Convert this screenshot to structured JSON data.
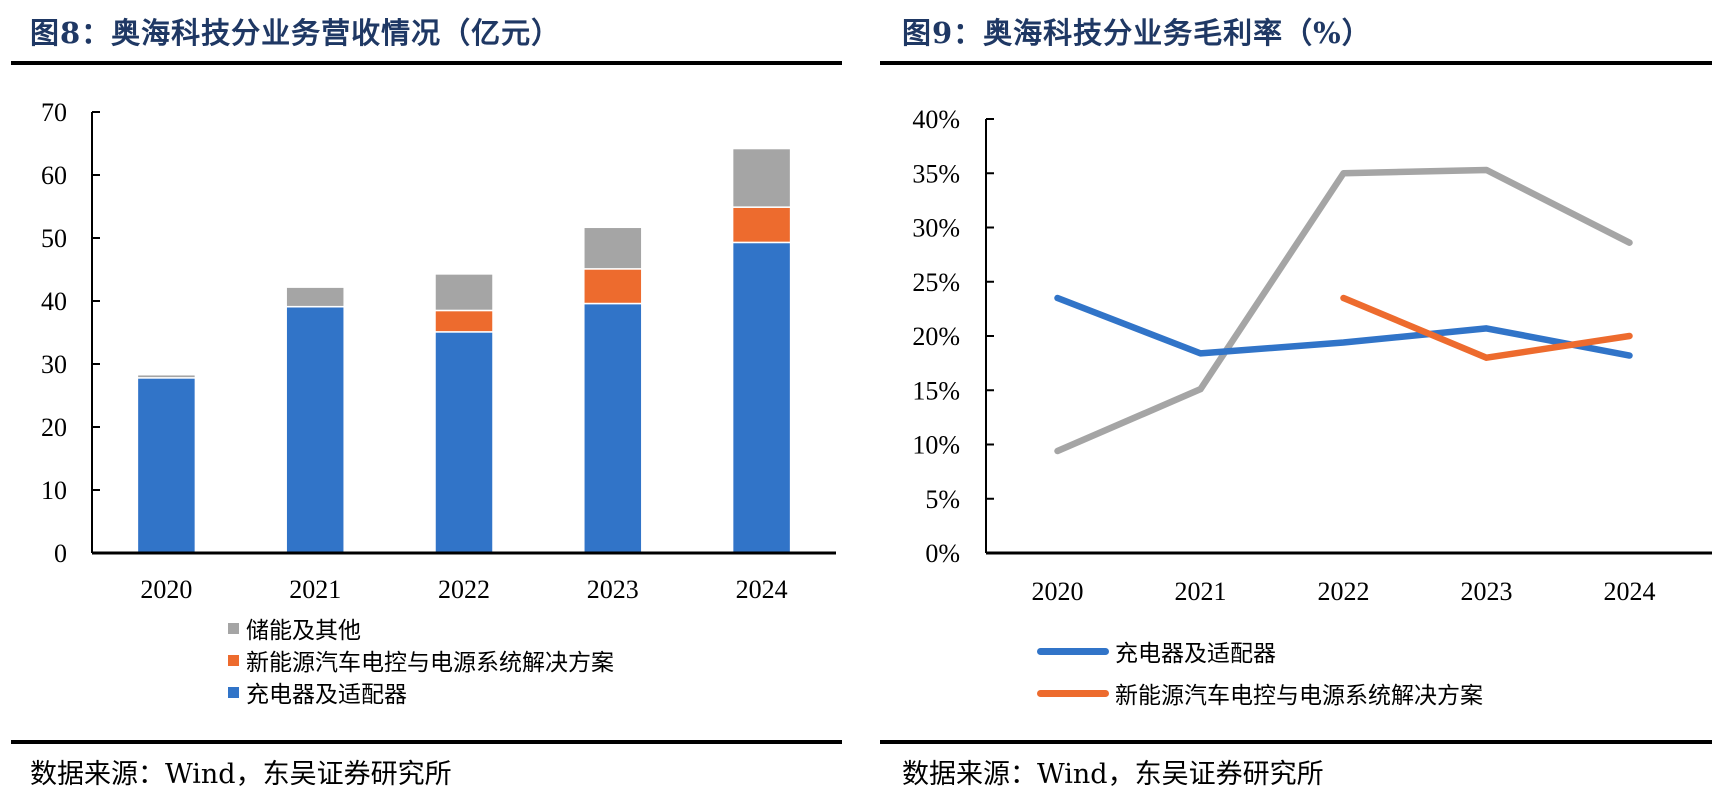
{
  "left": {
    "title": "图8：奥海科技分业务营收情况（亿元）",
    "source": "数据来源：Wind，东吴证券研究所"
  },
  "right": {
    "title": "图9：奥海科技分业务毛利率（%）",
    "source": "数据来源：Wind，东吴证券研究所"
  },
  "chart_data": [
    {
      "type": "bar",
      "stacked": true,
      "title": "图8：奥海科技分业务营收情况（亿元）",
      "xlabel": "",
      "ylabel": "",
      "categories": [
        "2020",
        "2021",
        "2022",
        "2023",
        "2024"
      ],
      "ylim": [
        0,
        70
      ],
      "yticks": [
        0,
        10,
        20,
        30,
        40,
        50,
        60,
        70
      ],
      "ytick_labels": [
        "0",
        "10",
        "20",
        "30",
        "40",
        "50",
        "60",
        "70"
      ],
      "grid": false,
      "legend_position": "bottom",
      "legend_order": [
        "储能及其他",
        "新能源汽车电控与电源系统解决方案",
        "充电器及适配器"
      ],
      "series": [
        {
          "name": "充电器及适配器",
          "color": "#3174C8",
          "values": [
            27.8,
            39.1,
            35.1,
            39.6,
            49.3
          ]
        },
        {
          "name": "新能源汽车电控与电源系统解决方案",
          "color": "#ED6B2E",
          "values": [
            0,
            0,
            3.4,
            5.5,
            5.6
          ]
        },
        {
          "name": "储能及其他",
          "color": "#A5A5A5",
          "values": [
            0.5,
            3.1,
            5.8,
            6.6,
            9.3
          ]
        }
      ]
    },
    {
      "type": "line",
      "title": "图9：奥海科技分业务毛利率（%）",
      "xlabel": "",
      "ylabel": "",
      "categories": [
        "2020",
        "2021",
        "2022",
        "2023",
        "2024"
      ],
      "ylim": [
        0,
        40
      ],
      "yticks": [
        0,
        5,
        10,
        15,
        20,
        25,
        30,
        35,
        40
      ],
      "ytick_labels": [
        "0%",
        "5%",
        "10%",
        "15%",
        "20%",
        "25%",
        "30%",
        "35%",
        "40%"
      ],
      "grid": false,
      "legend_position": "bottom",
      "series": [
        {
          "name": "充电器及适配器",
          "color": "#3174C8",
          "in_legend": true,
          "values": [
            23.5,
            18.4,
            19.4,
            20.7,
            18.2
          ]
        },
        {
          "name": "新能源汽车电控与电源系统解决方案",
          "color": "#ED6B2E",
          "in_legend": true,
          "values": [
            null,
            null,
            23.5,
            18.0,
            20.0
          ]
        },
        {
          "name": "储能及其他",
          "color": "#A5A5A5",
          "in_legend": false,
          "values": [
            9.4,
            15.1,
            35.0,
            35.3,
            28.6
          ]
        }
      ]
    }
  ]
}
